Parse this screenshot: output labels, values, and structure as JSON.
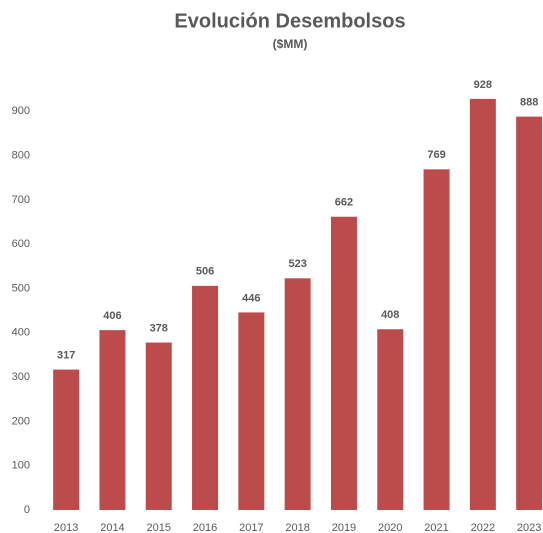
{
  "chart_data": {
    "type": "bar",
    "title": "Evolución Desembolsos",
    "subtitle": "($MM)",
    "categories": [
      "2013",
      "2014",
      "2015",
      "2016",
      "2017",
      "2018",
      "2019",
      "2020",
      "2021",
      "2022",
      "2023"
    ],
    "values": [
      317,
      406,
      378,
      506,
      446,
      523,
      662,
      408,
      769,
      928,
      888
    ],
    "color": "#bc4b4b",
    "ylim": [
      0,
      1000
    ],
    "yticks": [
      0,
      100,
      200,
      300,
      400,
      500,
      600,
      700,
      800,
      900
    ],
    "grid": false
  }
}
